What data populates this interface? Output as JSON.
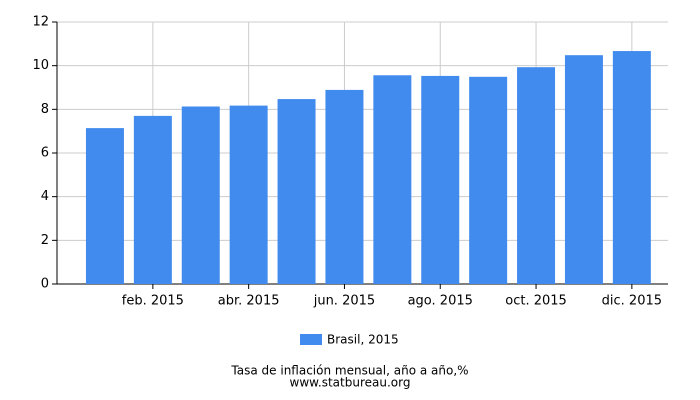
{
  "chart_data": {
    "type": "bar",
    "categories": [
      null,
      "feb. 2015",
      null,
      "abr. 2015",
      null,
      "jun. 2015",
      null,
      "ago. 2015",
      null,
      "oct. 2015",
      null,
      "dic. 2015"
    ],
    "series": [
      {
        "name": "Brasil, 2015",
        "color": "#428bee",
        "values": [
          7.14,
          7.7,
          8.13,
          8.17,
          8.47,
          8.89,
          9.56,
          9.53,
          9.49,
          9.93,
          10.48,
          10.67
        ]
      }
    ],
    "ylim": [
      0,
      12
    ],
    "yticks": [
      0,
      2,
      4,
      6,
      8,
      10,
      12
    ],
    "grid": true,
    "caption": "Tasa de inflación mensual, año a año,%",
    "source": "www.statbureau.org"
  }
}
